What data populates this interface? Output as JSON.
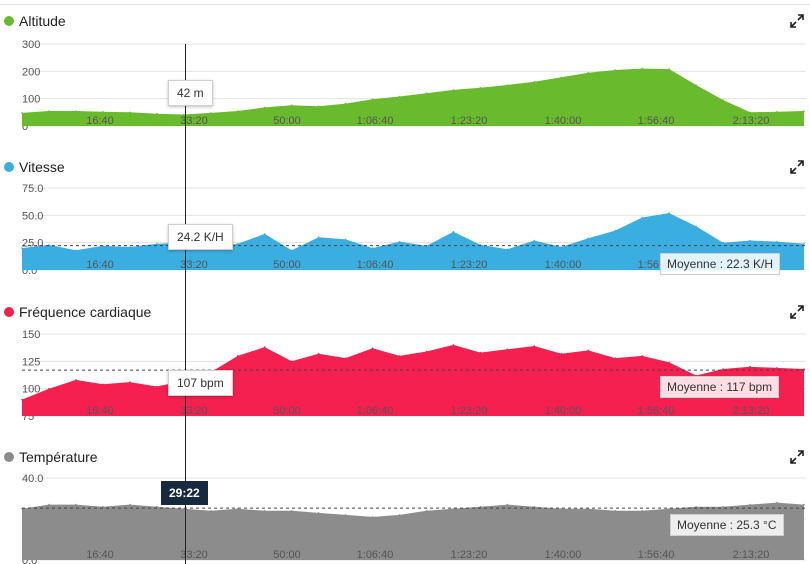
{
  "cursor_time": "29:22",
  "x_tick_labels": [
    "16:40",
    "33:20",
    "50:00",
    "1:06:40",
    "1:23:20",
    "1:40:00",
    "1:56:40",
    "2:13:20"
  ],
  "panels": [
    {
      "title": "Altitude",
      "color": "#6aba2e",
      "tooltip": "42 m",
      "average_label": "",
      "icon": "expand-icon"
    },
    {
      "title": "Vitesse",
      "color": "#3aaee0",
      "tooltip": "24.2 K/H",
      "average_label": "Moyenne : 22.3 K/H",
      "icon": "expand-icon"
    },
    {
      "title": "Fréquence cardiaque",
      "color": "#f5204f",
      "tooltip": "107 bpm",
      "average_label": "Moyenne : 117 bpm",
      "icon": "expand-icon"
    },
    {
      "title": "Température",
      "color": "#8c8c8c",
      "tooltip": "",
      "average_label": "Moyenne : 25.3 °C",
      "icon": "expand-icon"
    }
  ],
  "chart_data": [
    {
      "type": "area",
      "ylabel": "",
      "y_ticks": [
        "0",
        "100",
        "200",
        "300"
      ],
      "ylim": [
        0,
        300
      ],
      "grid": true,
      "x": [
        0,
        300,
        600,
        900,
        1200,
        1500,
        1800,
        2100,
        2400,
        2700,
        3000,
        3300,
        3600,
        3900,
        4200,
        4500,
        4800,
        5100,
        5400,
        5700,
        6000,
        6300,
        6600,
        6900,
        7200,
        7500,
        7800,
        8100,
        8400,
        8700
      ],
      "values": [
        48,
        55,
        55,
        52,
        50,
        45,
        42,
        48,
        55,
        68,
        76,
        72,
        82,
        98,
        108,
        120,
        132,
        140,
        150,
        162,
        178,
        195,
        205,
        210,
        208,
        150,
        95,
        50,
        52,
        55
      ],
      "average": null
    },
    {
      "type": "area",
      "ylabel": "",
      "y_ticks": [
        "0.0",
        "25.0",
        "50.0",
        "75.0"
      ],
      "ylim": [
        0,
        75
      ],
      "grid": true,
      "x": [
        0,
        300,
        600,
        900,
        1200,
        1500,
        1800,
        2100,
        2400,
        2700,
        3000,
        3300,
        3600,
        3900,
        4200,
        4500,
        4800,
        5100,
        5400,
        5700,
        6000,
        6300,
        6600,
        6900,
        7200,
        7500,
        7800,
        8100,
        8400,
        8700
      ],
      "values": [
        20,
        23,
        18,
        22,
        21,
        24,
        25,
        20,
        24,
        33,
        18,
        30,
        28,
        20,
        26,
        22,
        35,
        23,
        19,
        27,
        21,
        29,
        36,
        48,
        52,
        40,
        25,
        27,
        26,
        24
      ],
      "average": 22.3
    },
    {
      "type": "area",
      "ylabel": "",
      "y_ticks": [
        "75",
        "100",
        "125",
        "150"
      ],
      "ylim": [
        75,
        150
      ],
      "grid": true,
      "x": [
        0,
        300,
        600,
        900,
        1200,
        1500,
        1800,
        2100,
        2400,
        2700,
        3000,
        3300,
        3600,
        3900,
        4200,
        4500,
        4800,
        5100,
        5400,
        5700,
        6000,
        6300,
        6600,
        6900,
        7200,
        7500,
        7800,
        8100,
        8400,
        8700
      ],
      "values": [
        90,
        100,
        108,
        104,
        106,
        102,
        107,
        115,
        130,
        138,
        125,
        132,
        128,
        137,
        130,
        134,
        140,
        133,
        136,
        139,
        132,
        135,
        128,
        130,
        124,
        112,
        118,
        120,
        119,
        118
      ],
      "average": 117
    },
    {
      "type": "area",
      "ylabel": "",
      "y_ticks": [
        "0.0",
        "20.0",
        "40.0"
      ],
      "ylim": [
        0,
        40
      ],
      "grid": true,
      "x": [
        0,
        300,
        600,
        900,
        1200,
        1500,
        1800,
        2100,
        2400,
        2700,
        3000,
        3300,
        3600,
        3900,
        4200,
        4500,
        4800,
        5100,
        5400,
        5700,
        6000,
        6300,
        6600,
        6900,
        7200,
        7500,
        7800,
        8100,
        8400,
        8700
      ],
      "values": [
        25,
        27,
        27,
        26,
        27,
        26,
        25,
        24,
        25,
        24,
        24,
        23,
        22,
        21,
        22,
        24,
        25,
        26,
        27,
        26,
        25,
        25,
        24,
        24,
        25,
        26,
        26,
        27,
        28,
        27
      ],
      "average": 25.3
    }
  ]
}
